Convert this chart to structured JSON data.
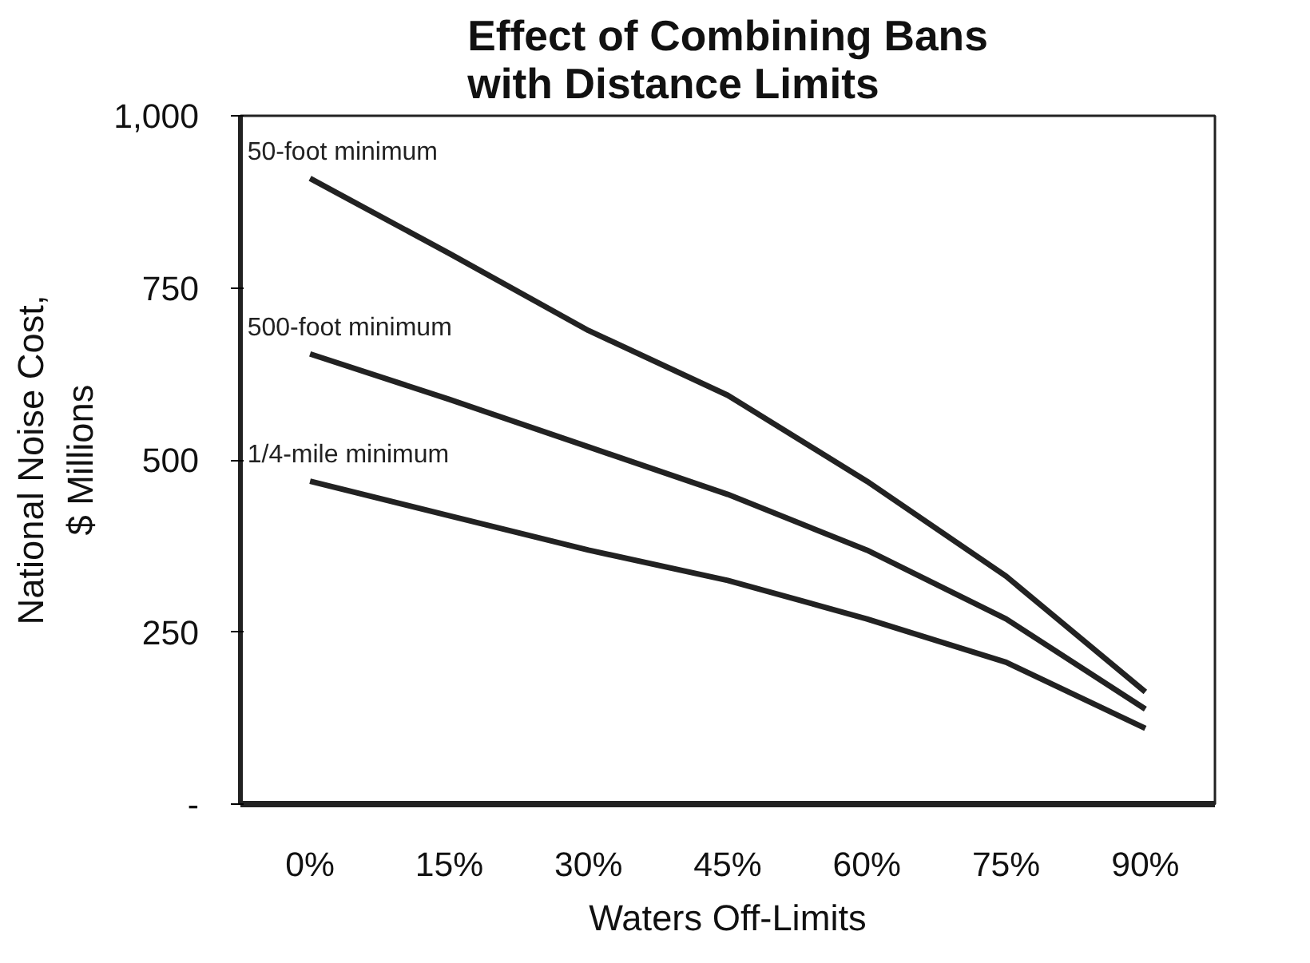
{
  "chart_data": {
    "type": "line",
    "title": "Effect of Combining Bans\nwith Distance Limits",
    "xlabel": "Waters Off-Limits",
    "ylabel": "National Noise Cost,\n$ Millions",
    "categories": [
      "0%",
      "15%",
      "30%",
      "45%",
      "60%",
      "75%",
      "90%"
    ],
    "ylim": [
      0,
      1000
    ],
    "yticks": [
      {
        "value": 0,
        "label": "-"
      },
      250,
      500,
      750,
      {
        "value": 1000,
        "label": "1,000"
      }
    ],
    "grid": false,
    "marker": "none",
    "line_style": "solid",
    "series": [
      {
        "name": "50-foot minimum",
        "color": "#222222",
        "values": [
          909,
          800,
          688,
          594,
          469,
          331,
          163
        ]
      },
      {
        "name": "500-foot minimum",
        "color": "#222222",
        "values": [
          654,
          588,
          519,
          450,
          369,
          269,
          138
        ]
      },
      {
        "name": "1/4-mile minimum",
        "color": "#222222",
        "values": [
          469,
          419,
          369,
          325,
          269,
          206,
          110
        ]
      }
    ]
  }
}
